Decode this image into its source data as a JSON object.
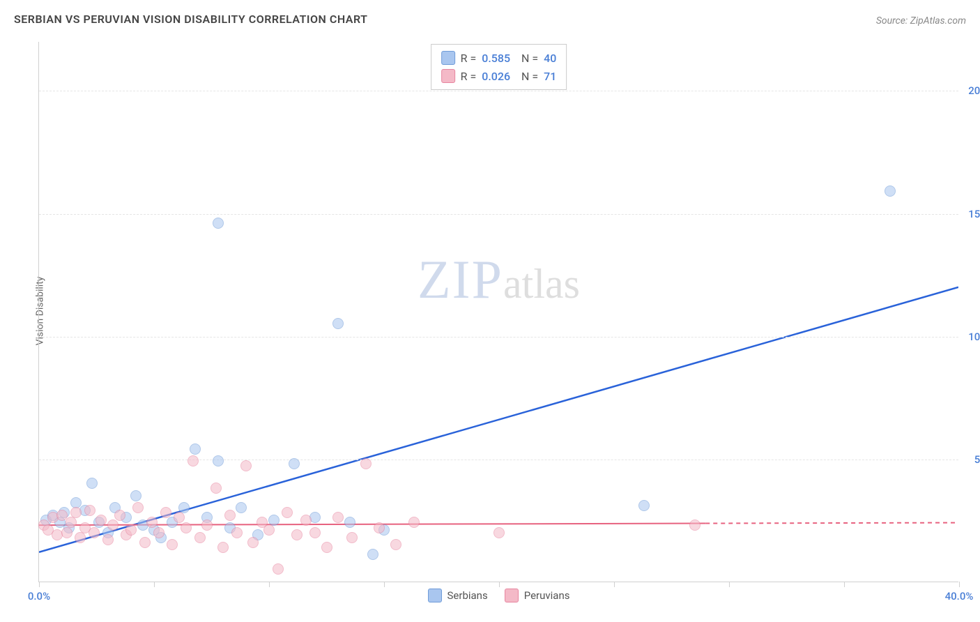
{
  "title": "SERBIAN VS PERUVIAN VISION DISABILITY CORRELATION CHART",
  "source_label": "Source: ZipAtlas.com",
  "y_axis_label": "Vision Disability",
  "watermark": {
    "zip": "ZIP",
    "atlas": "atlas"
  },
  "chart": {
    "type": "scatter",
    "xlim": [
      0,
      40
    ],
    "ylim": [
      0,
      22
    ],
    "x_ticks": [
      0,
      5,
      10,
      15,
      20,
      25,
      30,
      35,
      40
    ],
    "y_ticks": [
      5,
      10,
      15,
      20
    ],
    "x_tick_labels": {
      "0": "0.0%",
      "40": "40.0%"
    },
    "y_tick_labels": {
      "5": "5.0%",
      "10": "10.0%",
      "15": "15.0%",
      "20": "20.0%"
    },
    "grid_color": "#e5e5e5",
    "axis_color": "#d0d0d0",
    "background_color": "#ffffff",
    "tick_label_color": "#4a7fd6",
    "tick_label_fontsize": 15,
    "title_fontsize": 16,
    "title_color": "#444444",
    "marker_radius": 8,
    "marker_opacity": 0.55,
    "series": [
      {
        "name": "Serbians",
        "color_fill": "#a9c6ef",
        "color_stroke": "#6f9bd8",
        "R": "0.585",
        "N": "40",
        "trend": {
          "x1": 0,
          "y1": 1.2,
          "x2": 40,
          "y2": 12.0,
          "solid_until_x": 40,
          "color": "#2962d9",
          "width": 2.5
        },
        "points": [
          [
            0.3,
            2.5
          ],
          [
            0.6,
            2.7
          ],
          [
            0.9,
            2.4
          ],
          [
            1.1,
            2.8
          ],
          [
            1.3,
            2.2
          ],
          [
            1.6,
            3.2
          ],
          [
            2.0,
            2.9
          ],
          [
            2.3,
            4.0
          ],
          [
            2.6,
            2.4
          ],
          [
            3.0,
            2.0
          ],
          [
            3.3,
            3.0
          ],
          [
            3.8,
            2.6
          ],
          [
            4.2,
            3.5
          ],
          [
            4.5,
            2.3
          ],
          [
            5.0,
            2.1
          ],
          [
            5.3,
            1.8
          ],
          [
            5.8,
            2.4
          ],
          [
            6.3,
            3.0
          ],
          [
            6.8,
            5.4
          ],
          [
            7.3,
            2.6
          ],
          [
            7.8,
            4.9
          ],
          [
            8.3,
            2.2
          ],
          [
            8.8,
            3.0
          ],
          [
            9.5,
            1.9
          ],
          [
            10.2,
            2.5
          ],
          [
            11.1,
            4.8
          ],
          [
            12.0,
            2.6
          ],
          [
            13.0,
            10.5
          ],
          [
            13.5,
            2.4
          ],
          [
            14.5,
            1.1
          ],
          [
            15.0,
            2.1
          ],
          [
            7.8,
            14.6
          ],
          [
            26.3,
            3.1
          ],
          [
            37.0,
            15.9
          ]
        ]
      },
      {
        "name": "Peruvians",
        "color_fill": "#f4b9c7",
        "color_stroke": "#e7859f",
        "R": "0.026",
        "N": "71",
        "trend": {
          "x1": 0,
          "y1": 2.3,
          "x2": 40,
          "y2": 2.4,
          "solid_until_x": 29,
          "color": "#e7627f",
          "width": 2,
          "dash": "6,5"
        },
        "points": [
          [
            0.2,
            2.3
          ],
          [
            0.4,
            2.1
          ],
          [
            0.6,
            2.6
          ],
          [
            0.8,
            1.9
          ],
          [
            1.0,
            2.7
          ],
          [
            1.2,
            2.0
          ],
          [
            1.4,
            2.4
          ],
          [
            1.6,
            2.8
          ],
          [
            1.8,
            1.8
          ],
          [
            2.0,
            2.2
          ],
          [
            2.2,
            2.9
          ],
          [
            2.4,
            2.0
          ],
          [
            2.7,
            2.5
          ],
          [
            3.0,
            1.7
          ],
          [
            3.2,
            2.3
          ],
          [
            3.5,
            2.7
          ],
          [
            3.8,
            1.9
          ],
          [
            4.0,
            2.1
          ],
          [
            4.3,
            3.0
          ],
          [
            4.6,
            1.6
          ],
          [
            4.9,
            2.4
          ],
          [
            5.2,
            2.0
          ],
          [
            5.5,
            2.8
          ],
          [
            5.8,
            1.5
          ],
          [
            6.1,
            2.6
          ],
          [
            6.4,
            2.2
          ],
          [
            6.7,
            4.9
          ],
          [
            7.0,
            1.8
          ],
          [
            7.3,
            2.3
          ],
          [
            7.7,
            3.8
          ],
          [
            8.0,
            1.4
          ],
          [
            8.3,
            2.7
          ],
          [
            8.6,
            2.0
          ],
          [
            9.0,
            4.7
          ],
          [
            9.3,
            1.6
          ],
          [
            9.7,
            2.4
          ],
          [
            10.0,
            2.1
          ],
          [
            10.4,
            0.5
          ],
          [
            10.8,
            2.8
          ],
          [
            11.2,
            1.9
          ],
          [
            11.6,
            2.5
          ],
          [
            12.0,
            2.0
          ],
          [
            12.5,
            1.4
          ],
          [
            13.0,
            2.6
          ],
          [
            13.6,
            1.8
          ],
          [
            14.2,
            4.8
          ],
          [
            14.8,
            2.2
          ],
          [
            15.5,
            1.5
          ],
          [
            16.3,
            2.4
          ],
          [
            20.0,
            2.0
          ],
          [
            28.5,
            2.3
          ]
        ]
      }
    ]
  },
  "legend_bottom": [
    {
      "label": "Serbians",
      "swatch_fill": "#a9c6ef",
      "swatch_stroke": "#6f9bd8"
    },
    {
      "label": "Peruvians",
      "swatch_fill": "#f4b9c7",
      "swatch_stroke": "#e7859f"
    }
  ]
}
